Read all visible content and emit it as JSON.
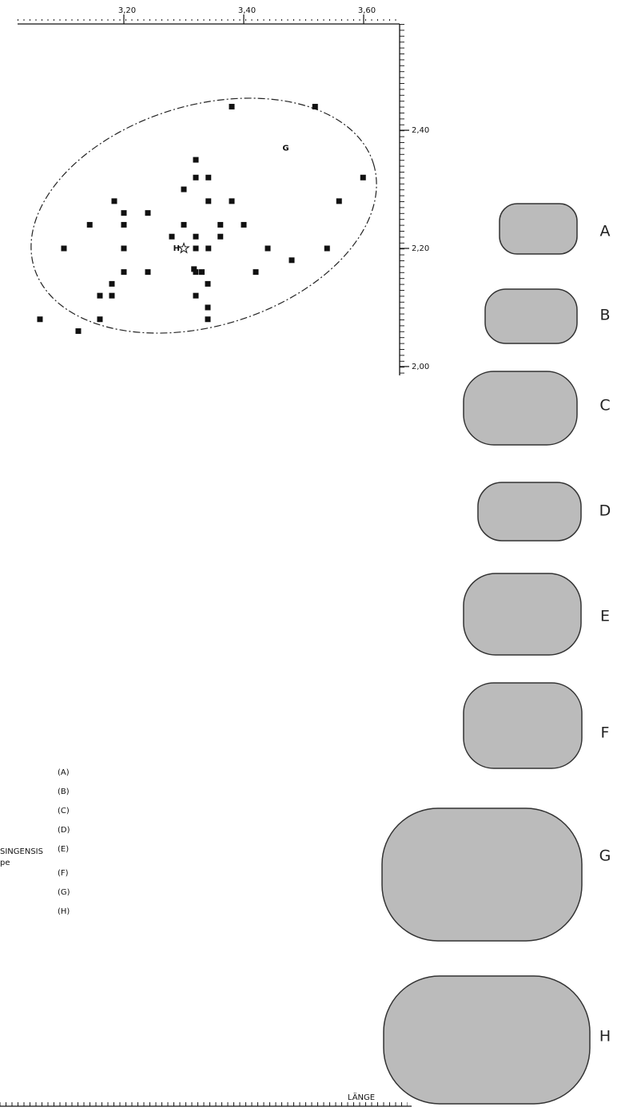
{
  "chart_data": {
    "type": "scatter",
    "x": [
      3.38,
      3.519,
      3.599,
      3.559,
      3.32,
      3.32,
      3.341,
      3.3,
      3.184,
      3.341,
      3.38,
      3.2,
      3.24,
      3.143,
      3.2,
      3.3,
      3.361,
      3.4,
      3.28,
      3.32,
      3.361,
      3.1,
      3.2,
      3.32,
      3.341,
      3.44,
      3.539,
      3.48,
      3.2,
      3.24,
      3.317,
      3.33,
      3.32,
      3.42,
      3.18,
      3.34,
      3.16,
      3.18,
      3.32,
      3.34,
      3.06,
      3.16,
      3.34,
      3.124
    ],
    "y": [
      2.44,
      2.44,
      2.32,
      2.28,
      2.35,
      2.32,
      2.32,
      2.3,
      2.28,
      2.28,
      2.28,
      2.26,
      2.26,
      2.24,
      2.24,
      2.24,
      2.24,
      2.24,
      2.22,
      2.22,
      2.22,
      2.2,
      2.2,
      2.2,
      2.2,
      2.2,
      2.2,
      2.18,
      2.16,
      2.16,
      2.165,
      2.16,
      2.16,
      2.16,
      2.14,
      2.14,
      2.12,
      2.12,
      2.12,
      2.1,
      2.08,
      2.08,
      2.08,
      2.06
    ],
    "color": "#111111",
    "xlim": [
      3.0227,
      3.66
    ],
    "ylim": [
      1.985,
      2.58
    ],
    "xticks": [
      {
        "value": 3.2,
        "label": "3,20"
      },
      {
        "value": 3.4,
        "label": "3,40"
      },
      {
        "value": 3.6,
        "label": "3,60"
      }
    ],
    "yticks": [
      {
        "value": 2.4,
        "label": "2,40"
      },
      {
        "value": 2.2,
        "label": "2,20"
      },
      {
        "value": 2.0,
        "label": "2,00"
      }
    ],
    "group_label": {
      "text": "G",
      "x": 3.47,
      "y": 2.37
    },
    "holotype": {
      "label": "H",
      "x": 3.3,
      "y": 2.2
    },
    "x_label": "LÄNGE"
  },
  "specimens": [
    "A",
    "B",
    "C",
    "D",
    "E",
    "F",
    "G",
    "H"
  ],
  "legend": {
    "items": [
      "(A)",
      "(B)",
      "(C)",
      "(D)",
      "(E)",
      "(F)",
      "(G)",
      "(H)"
    ],
    "side_text": [
      "SINGENSIS",
      "pe"
    ]
  }
}
